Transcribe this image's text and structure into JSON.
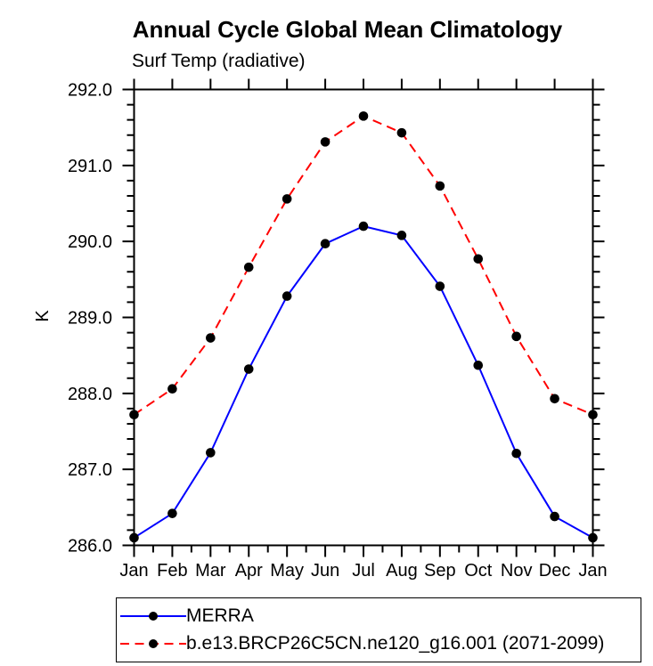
{
  "chart_data": {
    "type": "line",
    "title": "Annual Cycle Global Mean Climatology",
    "subtitle": "Surf Temp (radiative)",
    "ylabel": "K",
    "categories": [
      "Jan",
      "Feb",
      "Mar",
      "Apr",
      "May",
      "Jun",
      "Jul",
      "Aug",
      "Sep",
      "Oct",
      "Nov",
      "Dec",
      "Jan"
    ],
    "ylim": [
      286.0,
      292.0
    ],
    "y_major_step": 1.0,
    "y_minor_step": 0.2,
    "y_tick_labels": [
      "292.0",
      "291.0",
      "290.0",
      "289.0",
      "288.0",
      "287.0",
      "286.0"
    ],
    "x_minor_ticks_per_interval": 1,
    "grid": false,
    "legend_position": "bottom-left",
    "axis_color": "#000000",
    "marker": "filled-circle",
    "marker_color": "#000000",
    "series": [
      {
        "name": "MERRA",
        "color": "#0000ff",
        "line_style": "solid",
        "values": [
          286.1,
          286.42,
          287.22,
          288.32,
          289.28,
          289.97,
          290.2,
          290.08,
          289.41,
          288.37,
          287.21,
          286.38,
          286.1
        ]
      },
      {
        "name": "b.e13.BRCP26C5CN.ne120_g16.001 (2071-2099)",
        "color": "#ff0000",
        "line_style": "dashed",
        "values": [
          287.72,
          288.06,
          288.73,
          289.66,
          290.56,
          291.31,
          291.65,
          291.43,
          290.73,
          289.77,
          288.75,
          287.93,
          287.72
        ]
      }
    ]
  }
}
